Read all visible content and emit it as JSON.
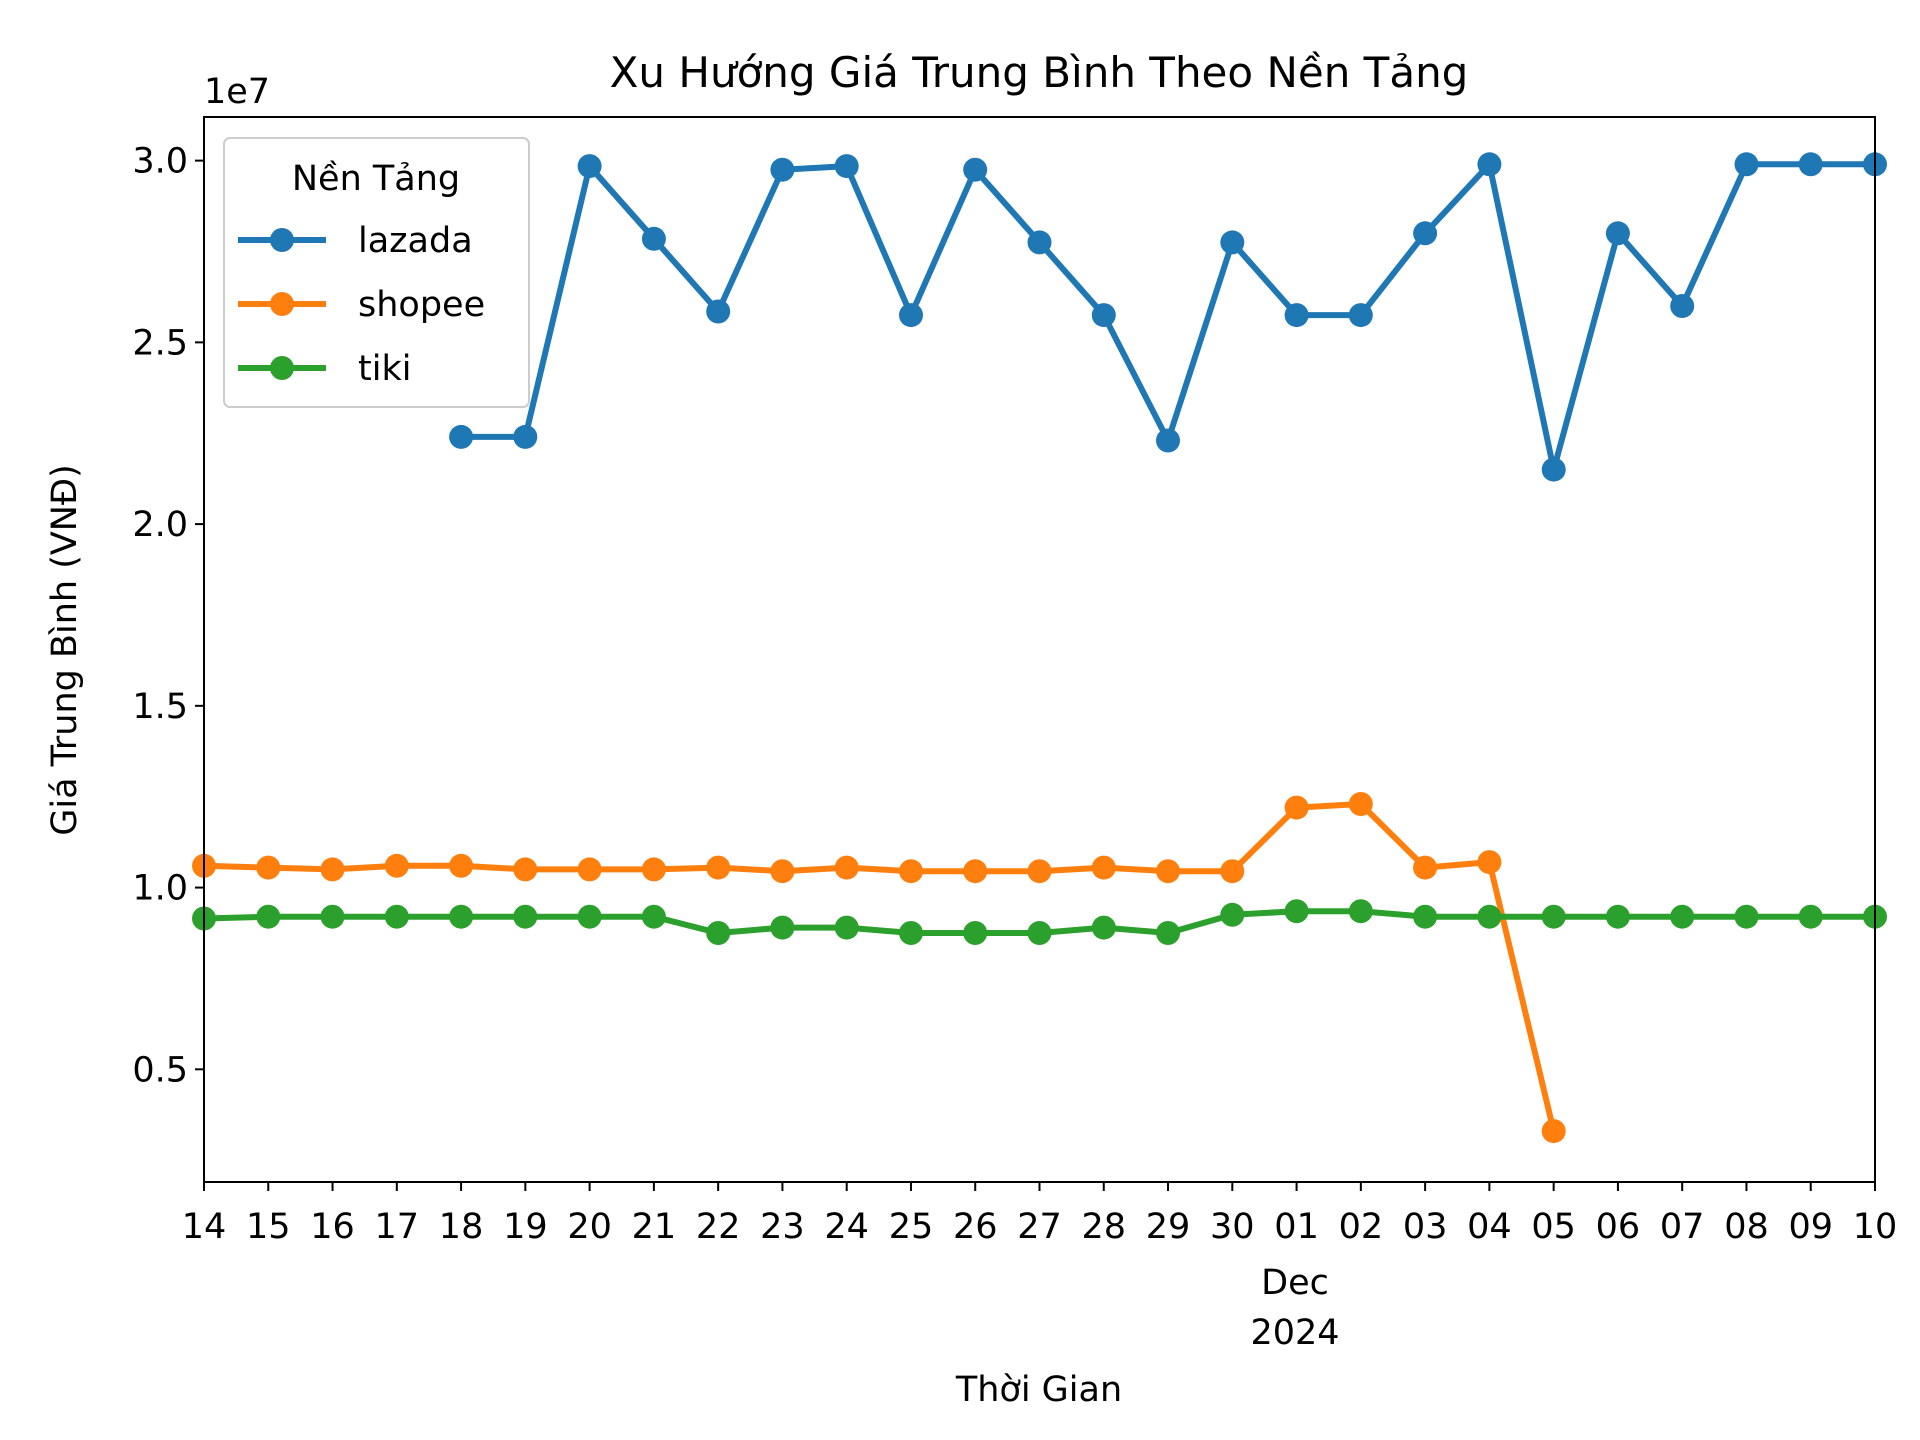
{
  "chart_data": {
    "type": "line",
    "title": "Xu Hướng Giá Trung Bình Theo Nền Tảng",
    "xlabel": "Thời Gian",
    "ylabel": "Giá Trung Bình (VNĐ)",
    "y_offset_label": "1e7",
    "x": [
      "2024-11-14",
      "2024-11-15",
      "2024-11-16",
      "2024-11-17",
      "2024-11-18",
      "2024-11-19",
      "2024-11-20",
      "2024-11-21",
      "2024-11-22",
      "2024-11-23",
      "2024-11-24",
      "2024-11-25",
      "2024-11-26",
      "2024-11-27",
      "2024-11-28",
      "2024-11-29",
      "2024-11-30",
      "2024-12-01",
      "2024-12-02",
      "2024-12-03",
      "2024-12-04",
      "2024-12-05",
      "2024-12-06",
      "2024-12-07",
      "2024-12-08",
      "2024-12-09",
      "2024-12-10"
    ],
    "x_tick_labels": [
      "14",
      "15",
      "16",
      "17",
      "18",
      "19",
      "20",
      "21",
      "22",
      "23",
      "24",
      "25",
      "26",
      "27",
      "28",
      "29",
      "30",
      "01",
      "02",
      "03",
      "04",
      "05",
      "06",
      "07",
      "08",
      "09",
      "10"
    ],
    "x_secondary_label": [
      "Dec",
      "2024"
    ],
    "xlim": [
      "2024-11-14",
      "2024-12-10"
    ],
    "y_ticks": [
      0.5,
      1.0,
      1.5,
      2.0,
      2.5,
      3.0
    ],
    "y_tick_labels": [
      "0.5",
      "1.0",
      "1.5",
      "2.0",
      "2.5",
      "3.0"
    ],
    "ylim": [
      1900000,
      31200000
    ],
    "legend": {
      "title": "Nền Tảng",
      "placement": "upper-left"
    },
    "grid": false,
    "series": [
      {
        "name": "lazada",
        "color": "#1f77b4",
        "values": [
          null,
          null,
          null,
          null,
          22400000,
          22400000,
          29850000,
          27850000,
          25850000,
          29750000,
          29850000,
          25750000,
          29750000,
          27750000,
          25750000,
          22300000,
          27750000,
          25750000,
          25750000,
          28000000,
          29900000,
          21500000,
          28000000,
          26000000,
          29900000,
          29900000,
          29900000
        ]
      },
      {
        "name": "shopee",
        "color": "#ff7f0e",
        "values": [
          10600000,
          10550000,
          10500000,
          10600000,
          10600000,
          10500000,
          10500000,
          10500000,
          10550000,
          10450000,
          10550000,
          10450000,
          10450000,
          10450000,
          10550000,
          10450000,
          10450000,
          12200000,
          12300000,
          10550000,
          10700000,
          3300000,
          null,
          null,
          null,
          null,
          null
        ]
      },
      {
        "name": "tiki",
        "color": "#2ca02c",
        "values": [
          9150000,
          9200000,
          9200000,
          9200000,
          9200000,
          9200000,
          9200000,
          9200000,
          8750000,
          8900000,
          8900000,
          8750000,
          8750000,
          8750000,
          8900000,
          8750000,
          9250000,
          9350000,
          9350000,
          9200000,
          9200000,
          9200000,
          9200000,
          9200000,
          9200000,
          9200000,
          9200000
        ]
      }
    ]
  }
}
